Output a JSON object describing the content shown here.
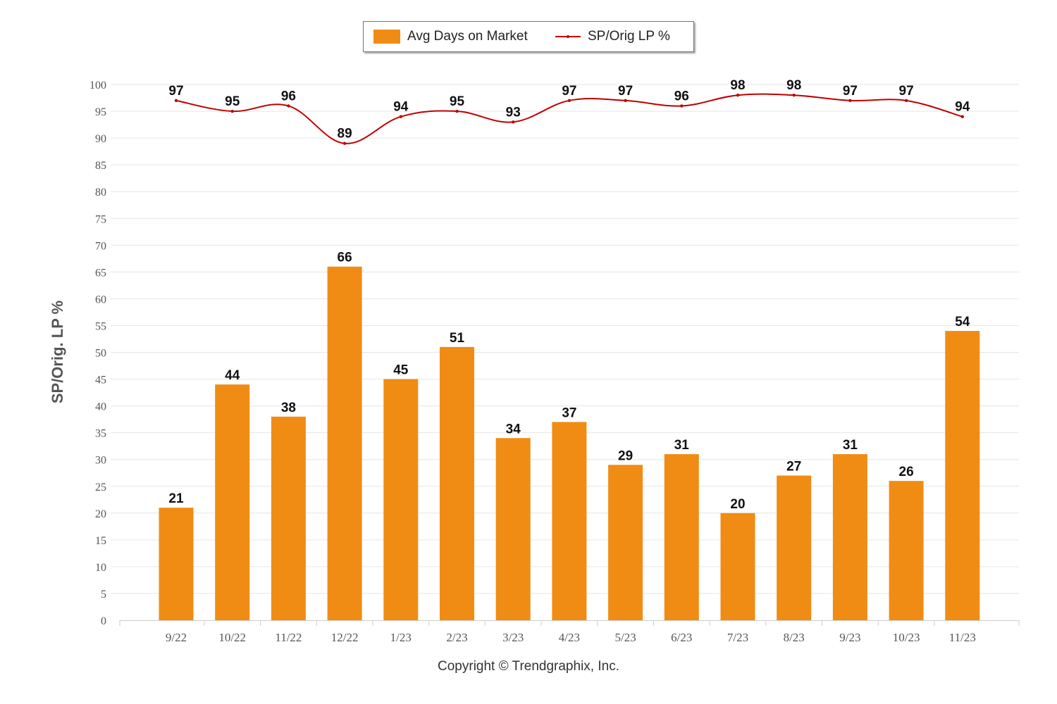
{
  "chart_data": {
    "type": "bar",
    "title": "",
    "xlabel": "",
    "ylabel": "SP/Orig. LP %",
    "ylim": [
      0,
      100
    ],
    "yticks": [
      0,
      5,
      10,
      15,
      20,
      25,
      30,
      35,
      40,
      45,
      50,
      55,
      60,
      65,
      70,
      75,
      80,
      85,
      90,
      95,
      100
    ],
    "grid": true,
    "legend_position": "top-center",
    "categories": [
      "9/22",
      "10/22",
      "11/22",
      "12/22",
      "1/23",
      "2/23",
      "3/23",
      "4/23",
      "5/23",
      "6/23",
      "7/23",
      "8/23",
      "9/23",
      "10/23",
      "11/23"
    ],
    "series": [
      {
        "name": "Avg Days on Market",
        "type": "bar",
        "color": "#f08c14",
        "values": [
          21,
          44,
          38,
          66,
          45,
          51,
          34,
          37,
          29,
          31,
          20,
          27,
          31,
          26,
          54
        ]
      },
      {
        "name": "SP/Orig LP %",
        "type": "line",
        "color": "#c00000",
        "values": [
          97,
          95,
          96,
          89,
          94,
          95,
          93,
          97,
          97,
          96,
          98,
          98,
          97,
          97,
          94
        ]
      }
    ]
  },
  "copyright": "Copyright © Trendgraphix, Inc."
}
